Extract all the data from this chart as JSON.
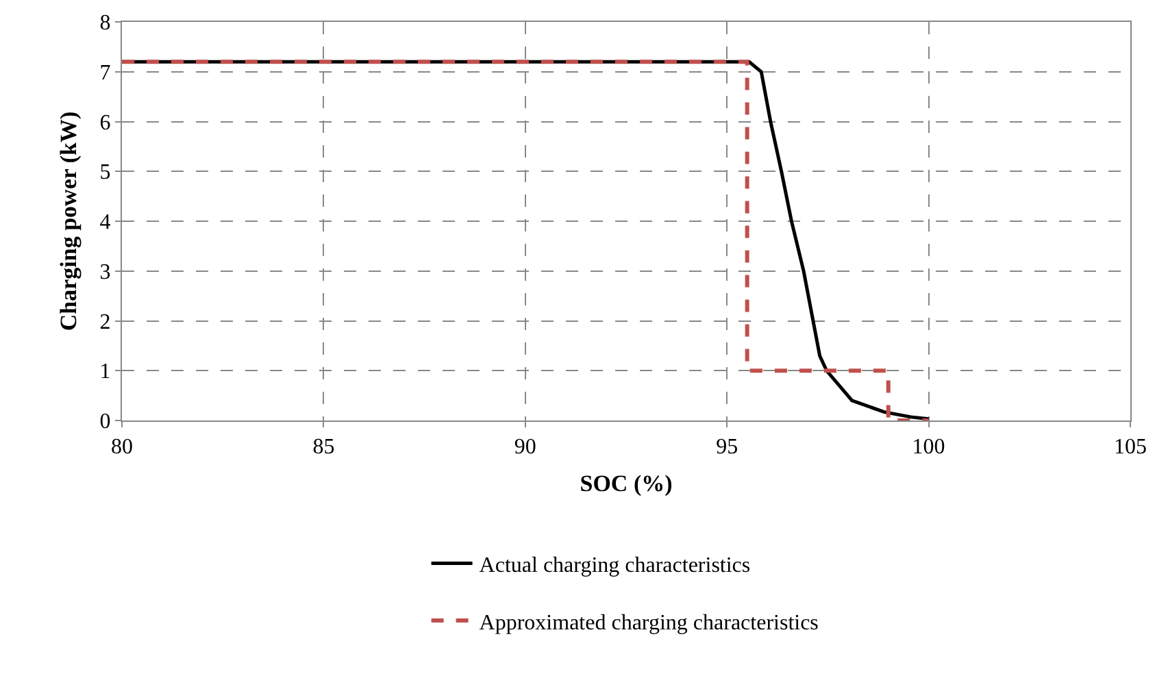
{
  "chart_data": {
    "type": "line",
    "xlabel": "SOC (%)",
    "ylabel": "Charging power (kW)",
    "xlim": [
      80,
      105
    ],
    "xticks": [
      80,
      85,
      90,
      95,
      100,
      105
    ],
    "ylim": [
      0,
      8
    ],
    "yticks": [
      0,
      1,
      2,
      3,
      4,
      5,
      6,
      7,
      8
    ],
    "grid": true,
    "legend": "bottom",
    "marker": "none",
    "series": [
      {
        "name": "Actual charging characteristics",
        "color": "#000000",
        "line_style": "solid",
        "x": [
          80,
          95.55,
          95.85,
          96.08,
          96.35,
          96.6,
          96.9,
          97.3,
          97.47,
          98.1,
          98.9,
          99.56,
          100
        ],
        "values": [
          7.2,
          7.2,
          7,
          6,
          5,
          4,
          3,
          1.3,
          1,
          0.4,
          0.17,
          0.07,
          0.03
        ]
      },
      {
        "name": "Approximated charging characteristics",
        "color": "#c0504d",
        "line_style": "dashed",
        "type": "step",
        "x": [
          80,
          95.5,
          99,
          100
        ],
        "values": [
          7.2,
          1,
          0,
          0
        ]
      }
    ]
  }
}
